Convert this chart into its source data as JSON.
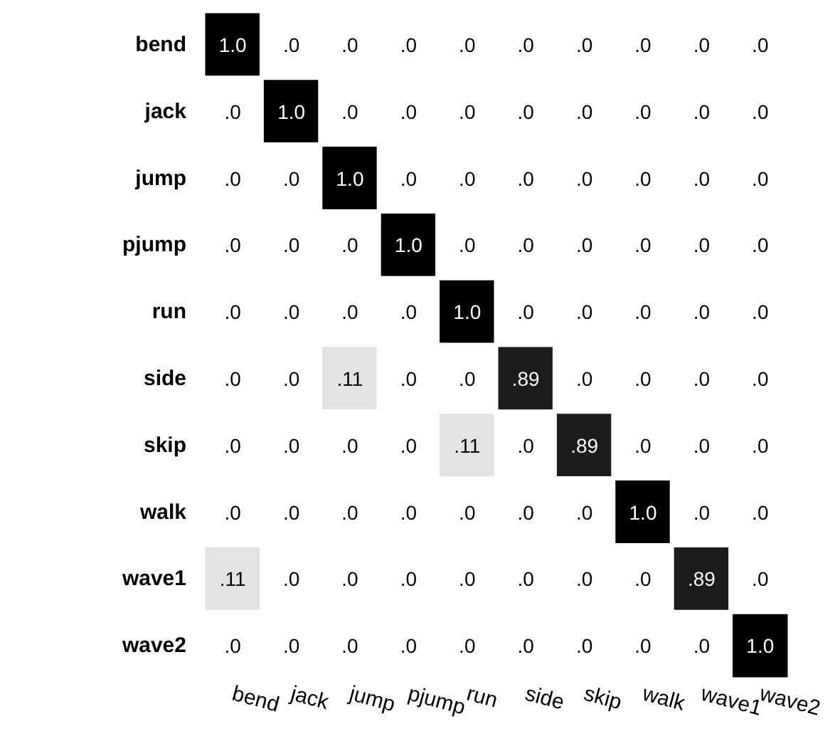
{
  "chart_data": {
    "type": "heatmap",
    "categories": [
      "bend",
      "jack",
      "jump",
      "pjump",
      "run",
      "side",
      "skip",
      "walk",
      "wave1",
      "wave2"
    ],
    "y_categories": [
      "bend",
      "jack",
      "jump",
      "pjump",
      "run",
      "side",
      "skip",
      "walk",
      "wave1",
      "wave2"
    ],
    "cells": [
      [
        1.0,
        0,
        0,
        0,
        0,
        0,
        0,
        0,
        0,
        0
      ],
      [
        0,
        1.0,
        0,
        0,
        0,
        0,
        0,
        0,
        0,
        0
      ],
      [
        0,
        0,
        1.0,
        0,
        0,
        0,
        0,
        0,
        0,
        0
      ],
      [
        0,
        0,
        0,
        1.0,
        0,
        0,
        0,
        0,
        0,
        0
      ],
      [
        0,
        0,
        0,
        0,
        1.0,
        0,
        0,
        0,
        0,
        0
      ],
      [
        0,
        0,
        0.11,
        0,
        0,
        0.89,
        0,
        0,
        0,
        0
      ],
      [
        0,
        0,
        0,
        0,
        0.11,
        0,
        0.89,
        0,
        0,
        0
      ],
      [
        0,
        0,
        0,
        0,
        0,
        0,
        0,
        1.0,
        0,
        0
      ],
      [
        0.11,
        0,
        0,
        0,
        0,
        0,
        0,
        0,
        0.89,
        0
      ],
      [
        0,
        0,
        0,
        0,
        0,
        0,
        0,
        0,
        0,
        1.0
      ]
    ],
    "cell_labels": [
      [
        "1.0",
        ".0",
        ".0",
        ".0",
        ".0",
        ".0",
        ".0",
        ".0",
        ".0",
        ".0"
      ],
      [
        ".0",
        "1.0",
        ".0",
        ".0",
        ".0",
        ".0",
        ".0",
        ".0",
        ".0",
        ".0"
      ],
      [
        ".0",
        ".0",
        "1.0",
        ".0",
        ".0",
        ".0",
        ".0",
        ".0",
        ".0",
        ".0"
      ],
      [
        ".0",
        ".0",
        ".0",
        "1.0",
        ".0",
        ".0",
        ".0",
        ".0",
        ".0",
        ".0"
      ],
      [
        ".0",
        ".0",
        ".0",
        ".0",
        "1.0",
        ".0",
        ".0",
        ".0",
        ".0",
        ".0"
      ],
      [
        ".0",
        ".0",
        ".11",
        ".0",
        ".0",
        ".89",
        ".0",
        ".0",
        ".0",
        ".0"
      ],
      [
        ".0",
        ".0",
        ".0",
        ".0",
        ".11",
        ".0",
        ".89",
        ".0",
        ".0",
        ".0"
      ],
      [
        ".0",
        ".0",
        ".0",
        ".0",
        ".0",
        ".0",
        ".0",
        "1.0",
        ".0",
        ".0"
      ],
      [
        ".11",
        ".0",
        ".0",
        ".0",
        ".0",
        ".0",
        ".0",
        ".0",
        ".89",
        ".0"
      ],
      [
        ".0",
        ".0",
        ".0",
        ".0",
        ".0",
        ".0",
        ".0",
        ".0",
        ".0",
        "1.0"
      ]
    ]
  }
}
